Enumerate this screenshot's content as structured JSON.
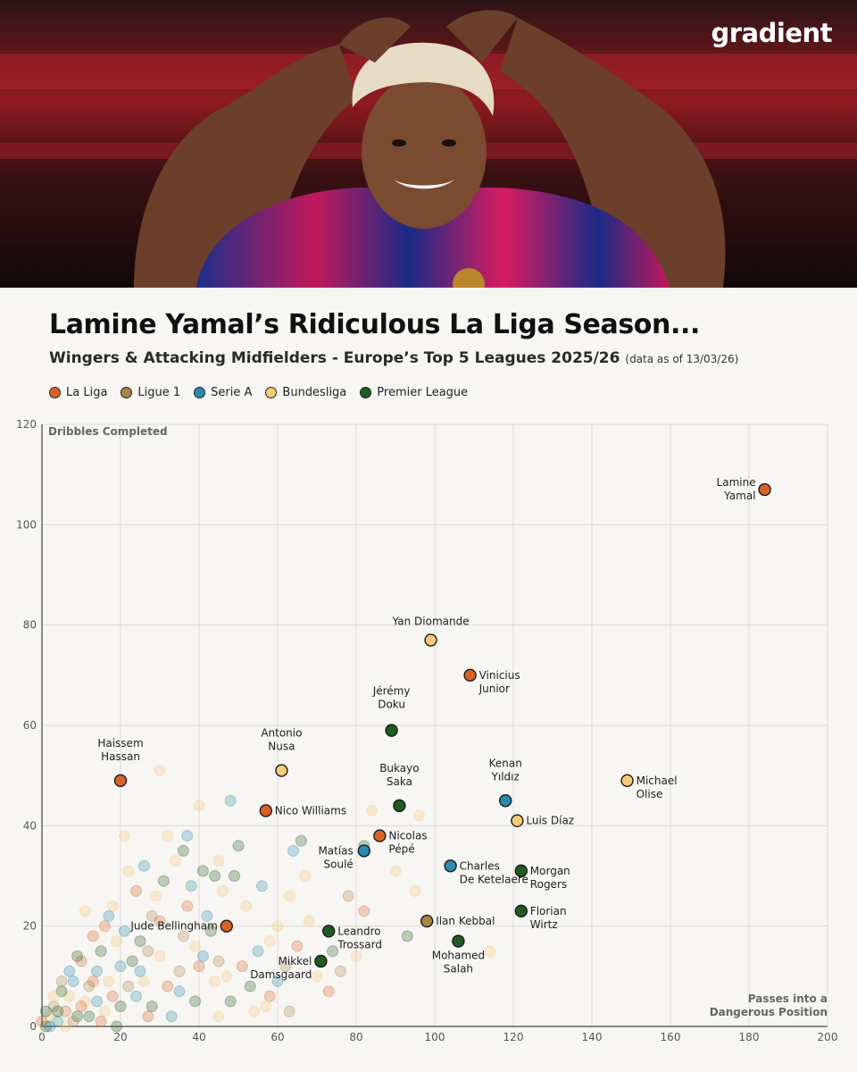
{
  "brand": "gradient",
  "header": {
    "title": "Lamine Yamal’s Ridiculous La Liga Season...",
    "subtitle": "Wingers & Attacking Midfielders - Europe’s Top 5 Leagues 2025/26",
    "subtitle_note": "(data as of 13/03/26)"
  },
  "colors": {
    "La Liga": "#d9622a",
    "Ligue 1": "#a88445",
    "Serie A": "#2a8bb0",
    "Bundesliga": "#f5ca78",
    "Premier League": "#1f5c22",
    "background": "#f7f6f3",
    "grid": "#dedcd8"
  },
  "chart_data": {
    "type": "scatter",
    "xlabel": "Passes into a Dangerous Position",
    "ylabel": "Dribbles Completed",
    "xlim": [
      0,
      200
    ],
    "ylim": [
      0,
      120
    ],
    "xticks": [
      0,
      20,
      40,
      60,
      80,
      100,
      120,
      140,
      160,
      180,
      200
    ],
    "yticks": [
      0,
      20,
      40,
      60,
      80,
      100,
      120
    ],
    "grid": true,
    "legend_position": "top-left",
    "legend": [
      "La Liga",
      "Ligue 1",
      "Serie A",
      "Bundesliga",
      "Premier League"
    ],
    "highlighted": [
      {
        "name": "Lamine Yamal",
        "league": "La Liga",
        "x": 184,
        "y": 107
      },
      {
        "name": "Yan Diomande",
        "league": "Bundesliga",
        "x": 99,
        "y": 77
      },
      {
        "name": "Vinicius Junior",
        "league": "La Liga",
        "x": 109,
        "y": 70
      },
      {
        "name": "Jérémy Doku",
        "league": "Premier League",
        "x": 89,
        "y": 59
      },
      {
        "name": "Haissem Hassan",
        "league": "La Liga",
        "x": 20,
        "y": 49
      },
      {
        "name": "Antonio Nusa",
        "league": "Bundesliga",
        "x": 61,
        "y": 51
      },
      {
        "name": "Michael Olise",
        "league": "Bundesliga",
        "x": 149,
        "y": 49
      },
      {
        "name": "Kenan Yıldız",
        "league": "Serie A",
        "x": 118,
        "y": 45
      },
      {
        "name": "Bukayo Saka",
        "league": "Premier League",
        "x": 91,
        "y": 44
      },
      {
        "name": "Nico Williams",
        "league": "La Liga",
        "x": 57,
        "y": 43
      },
      {
        "name": "Luis Díaz",
        "league": "Bundesliga",
        "x": 121,
        "y": 41
      },
      {
        "name": "Nicolas Pépé",
        "league": "La Liga",
        "x": 86,
        "y": 38
      },
      {
        "name": "Matías Soulé",
        "league": "Serie A",
        "x": 82,
        "y": 35
      },
      {
        "name": "Charles De Ketelaere",
        "league": "Serie A",
        "x": 104,
        "y": 32
      },
      {
        "name": "Morgan Rogers",
        "league": "Premier League",
        "x": 122,
        "y": 31
      },
      {
        "name": "Florian Wirtz",
        "league": "Premier League",
        "x": 122,
        "y": 23
      },
      {
        "name": "Ilan Kebbal",
        "league": "Ligue 1",
        "x": 98,
        "y": 21
      },
      {
        "name": "Jude Bellingham",
        "league": "La Liga",
        "x": 47,
        "y": 20
      },
      {
        "name": "Leandro Trossard",
        "league": "Premier League",
        "x": 73,
        "y": 19
      },
      {
        "name": "Mohamed Salah",
        "league": "Premier League",
        "x": 106,
        "y": 17
      },
      {
        "name": "Mikkel Damsgaard",
        "league": "Premier League",
        "x": 71,
        "y": 13
      }
    ],
    "background_points": [
      {
        "league": "La Liga",
        "x": 30,
        "y": 21
      },
      {
        "league": "Bundesliga",
        "x": 30,
        "y": 51
      },
      {
        "league": "Bundesliga",
        "x": 21,
        "y": 38
      },
      {
        "league": "Bundesliga",
        "x": 40,
        "y": 44
      },
      {
        "league": "Serie A",
        "x": 48,
        "y": 45
      },
      {
        "league": "Bundesliga",
        "x": 96,
        "y": 42
      },
      {
        "league": "Bundesliga",
        "x": 84,
        "y": 43
      },
      {
        "league": "Premier League",
        "x": 82,
        "y": 36
      },
      {
        "league": "Bundesliga",
        "x": 90,
        "y": 31
      },
      {
        "league": "Bundesliga",
        "x": 95,
        "y": 27
      },
      {
        "league": "Premier League",
        "x": 93,
        "y": 18
      },
      {
        "league": "Bundesliga",
        "x": 114,
        "y": 15
      },
      {
        "league": "Ligue 1",
        "x": 78,
        "y": 26
      },
      {
        "league": "La Liga",
        "x": 82,
        "y": 23
      },
      {
        "league": "Bundesliga",
        "x": 67,
        "y": 30
      },
      {
        "league": "Serie A",
        "x": 64,
        "y": 35
      },
      {
        "league": "Premier League",
        "x": 66,
        "y": 37
      },
      {
        "league": "Bundesliga",
        "x": 68,
        "y": 21
      },
      {
        "league": "Ligue 1",
        "x": 76,
        "y": 11
      },
      {
        "league": "Bundesliga",
        "x": 80,
        "y": 14
      },
      {
        "league": "La Liga",
        "x": 73,
        "y": 7
      },
      {
        "league": "Bundesliga",
        "x": 60,
        "y": 20
      },
      {
        "league": "Premier League",
        "x": 50,
        "y": 36
      },
      {
        "league": "Serie A",
        "x": 56,
        "y": 28
      },
      {
        "league": "Bundesliga",
        "x": 58,
        "y": 17
      },
      {
        "league": "Ligue 1",
        "x": 62,
        "y": 12
      },
      {
        "league": "La Liga",
        "x": 58,
        "y": 6
      },
      {
        "league": "Bundesliga",
        "x": 54,
        "y": 3
      },
      {
        "league": "Premier League",
        "x": 44,
        "y": 30
      },
      {
        "league": "Bundesliga",
        "x": 46,
        "y": 27
      },
      {
        "league": "Serie A",
        "x": 42,
        "y": 22
      },
      {
        "league": "Ligue 1",
        "x": 36,
        "y": 18
      },
      {
        "league": "La Liga",
        "x": 40,
        "y": 12
      },
      {
        "league": "Bundesliga",
        "x": 44,
        "y": 9
      },
      {
        "league": "Premier League",
        "x": 48,
        "y": 5
      },
      {
        "league": "Serie A",
        "x": 38,
        "y": 28
      },
      {
        "league": "Bundesliga",
        "x": 34,
        "y": 33
      },
      {
        "league": "Premier League",
        "x": 36,
        "y": 35
      },
      {
        "league": "Bundesliga",
        "x": 32,
        "y": 38
      },
      {
        "league": "Serie A",
        "x": 26,
        "y": 32
      },
      {
        "league": "La Liga",
        "x": 24,
        "y": 27
      },
      {
        "league": "Bundesliga",
        "x": 22,
        "y": 31
      },
      {
        "league": "Ligue 1",
        "x": 28,
        "y": 22
      },
      {
        "league": "Premier League",
        "x": 25,
        "y": 17
      },
      {
        "league": "Serie A",
        "x": 20,
        "y": 12
      },
      {
        "league": "Bundesliga",
        "x": 30,
        "y": 14
      },
      {
        "league": "La Liga",
        "x": 32,
        "y": 8
      },
      {
        "league": "Premier League",
        "x": 28,
        "y": 4
      },
      {
        "league": "Ligue 1",
        "x": 35,
        "y": 11
      },
      {
        "league": "Serie A",
        "x": 33,
        "y": 2
      },
      {
        "league": "Bundesliga",
        "x": 18,
        "y": 24
      },
      {
        "league": "La Liga",
        "x": 16,
        "y": 20
      },
      {
        "league": "Premier League",
        "x": 15,
        "y": 15
      },
      {
        "league": "Serie A",
        "x": 14,
        "y": 11
      },
      {
        "league": "Ligue 1",
        "x": 12,
        "y": 8
      },
      {
        "league": "Bundesliga",
        "x": 11,
        "y": 5
      },
      {
        "league": "La Liga",
        "x": 10,
        "y": 13
      },
      {
        "league": "Premier League",
        "x": 9,
        "y": 2
      },
      {
        "league": "Serie A",
        "x": 8,
        "y": 9
      },
      {
        "league": "Bundesliga",
        "x": 7,
        "y": 6
      },
      {
        "league": "La Liga",
        "x": 6,
        "y": 3
      },
      {
        "league": "Premier League",
        "x": 5,
        "y": 7
      },
      {
        "league": "Serie A",
        "x": 4,
        "y": 1
      },
      {
        "league": "Ligue 1",
        "x": 3,
        "y": 4
      },
      {
        "league": "Bundesliga",
        "x": 2,
        "y": 2
      },
      {
        "league": "Premier League",
        "x": 1,
        "y": 0
      },
      {
        "league": "La Liga",
        "x": 0,
        "y": 1
      },
      {
        "league": "Serie A",
        "x": 2,
        "y": 0
      },
      {
        "league": "Premier League",
        "x": 4,
        "y": 3
      },
      {
        "league": "Bundesliga",
        "x": 6,
        "y": 0
      },
      {
        "league": "Ligue 1",
        "x": 8,
        "y": 1
      },
      {
        "league": "La Liga",
        "x": 10,
        "y": 4
      },
      {
        "league": "Premier League",
        "x": 12,
        "y": 2
      },
      {
        "league": "Serie A",
        "x": 14,
        "y": 5
      },
      {
        "league": "Bundesliga",
        "x": 16,
        "y": 3
      },
      {
        "league": "La Liga",
        "x": 18,
        "y": 6
      },
      {
        "league": "Premier League",
        "x": 20,
        "y": 4
      },
      {
        "league": "Ligue 1",
        "x": 22,
        "y": 8
      },
      {
        "league": "Serie A",
        "x": 24,
        "y": 6
      },
      {
        "league": "Bundesliga",
        "x": 26,
        "y": 9
      },
      {
        "league": "La Liga",
        "x": 27,
        "y": 2
      },
      {
        "league": "Premier League",
        "x": 23,
        "y": 13
      },
      {
        "league": "Bundesliga",
        "x": 19,
        "y": 17
      },
      {
        "league": "Serie A",
        "x": 17,
        "y": 22
      },
      {
        "league": "La Liga",
        "x": 13,
        "y": 18
      },
      {
        "league": "Bundesliga",
        "x": 11,
        "y": 23
      },
      {
        "league": "Premier League",
        "x": 9,
        "y": 14
      },
      {
        "league": "Serie A",
        "x": 7,
        "y": 11
      },
      {
        "league": "Ligue 1",
        "x": 5,
        "y": 9
      },
      {
        "league": "Bundesliga",
        "x": 3,
        "y": 6
      },
      {
        "league": "Premier League",
        "x": 1,
        "y": 3
      },
      {
        "league": "La Liga",
        "x": 13,
        "y": 9
      },
      {
        "league": "Serie A",
        "x": 21,
        "y": 19
      },
      {
        "league": "Bundesliga",
        "x": 29,
        "y": 26
      },
      {
        "league": "Premier League",
        "x": 31,
        "y": 29
      },
      {
        "league": "La Liga",
        "x": 37,
        "y": 24
      },
      {
        "league": "Bundesliga",
        "x": 39,
        "y": 16
      },
      {
        "league": "Serie A",
        "x": 41,
        "y": 14
      },
      {
        "league": "Premier League",
        "x": 43,
        "y": 19
      },
      {
        "league": "Ligue 1",
        "x": 45,
        "y": 13
      },
      {
        "league": "Bundesliga",
        "x": 47,
        "y": 10
      },
      {
        "league": "La Liga",
        "x": 51,
        "y": 12
      },
      {
        "league": "Premier League",
        "x": 53,
        "y": 8
      },
      {
        "league": "Serie A",
        "x": 55,
        "y": 15
      },
      {
        "league": "Bundesliga",
        "x": 52,
        "y": 24
      },
      {
        "league": "Premier League",
        "x": 49,
        "y": 30
      },
      {
        "league": "Bundesliga",
        "x": 45,
        "y": 33
      },
      {
        "league": "Serie A",
        "x": 37,
        "y": 38
      },
      {
        "league": "Premier League",
        "x": 41,
        "y": 31
      },
      {
        "league": "Bundesliga",
        "x": 63,
        "y": 26
      },
      {
        "league": "La Liga",
        "x": 65,
        "y": 16
      },
      {
        "league": "Bundesliga",
        "x": 70,
        "y": 10
      },
      {
        "league": "Premier League",
        "x": 74,
        "y": 15
      },
      {
        "league": "Serie A",
        "x": 60,
        "y": 9
      },
      {
        "league": "Bundesliga",
        "x": 57,
        "y": 4
      },
      {
        "league": "Ligue 1",
        "x": 63,
        "y": 3
      },
      {
        "league": "Bundesliga",
        "x": 45,
        "y": 2
      },
      {
        "league": "Premier League",
        "x": 39,
        "y": 5
      },
      {
        "league": "Serie A",
        "x": 35,
        "y": 7
      },
      {
        "league": "La Liga",
        "x": 15,
        "y": 1
      },
      {
        "league": "Bundesliga",
        "x": 17,
        "y": 9
      },
      {
        "league": "Premier League",
        "x": 19,
        "y": 0
      },
      {
        "league": "Serie A",
        "x": 25,
        "y": 11
      },
      {
        "league": "Ligue 1",
        "x": 27,
        "y": 15
      }
    ]
  }
}
